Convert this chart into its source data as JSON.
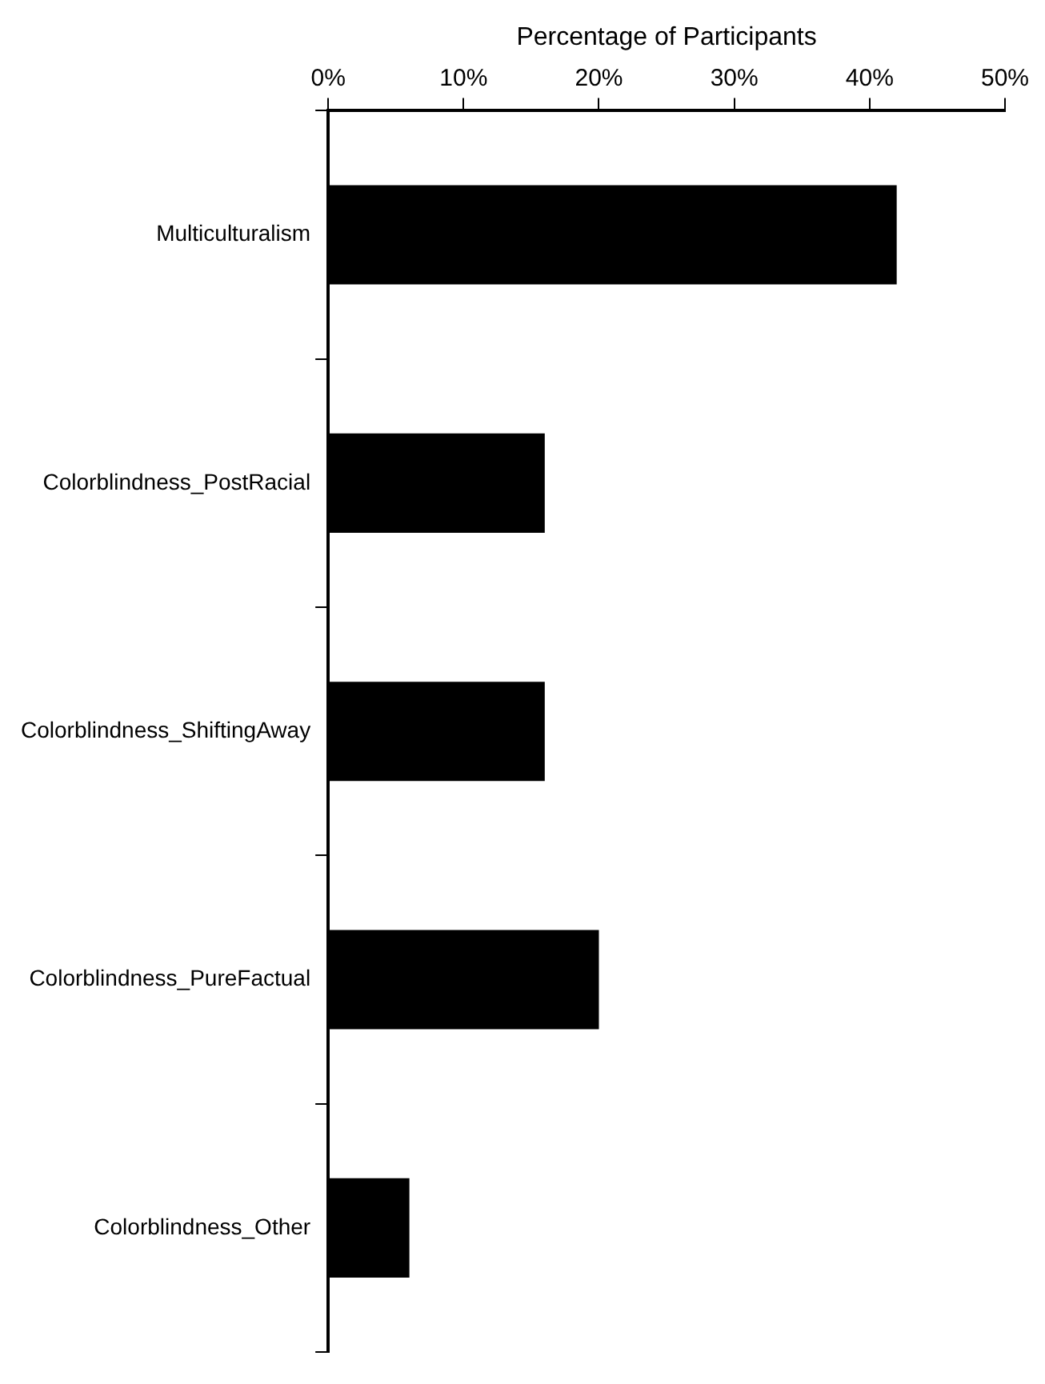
{
  "chart_data": {
    "type": "bar",
    "orientation": "horizontal",
    "xlabel": "Percentage of Participants",
    "categories": [
      "Multiculturalism",
      "Colorblindness_PostRacial",
      "Colorblindness_ShiftingAway",
      "Colorblindness_PureFactual",
      "Colorblindness_Other"
    ],
    "values": [
      42,
      16,
      16,
      20,
      6
    ],
    "color": "#000000",
    "xlim": [
      0,
      50
    ],
    "xticks": [
      {
        "value": 0,
        "label": "0%"
      },
      {
        "value": 10,
        "label": "10%"
      },
      {
        "value": 20,
        "label": "20%"
      },
      {
        "value": 30,
        "label": "30%"
      },
      {
        "value": 40,
        "label": "40%"
      },
      {
        "value": 50,
        "label": "50%"
      }
    ],
    "grid": false,
    "legend": false
  }
}
